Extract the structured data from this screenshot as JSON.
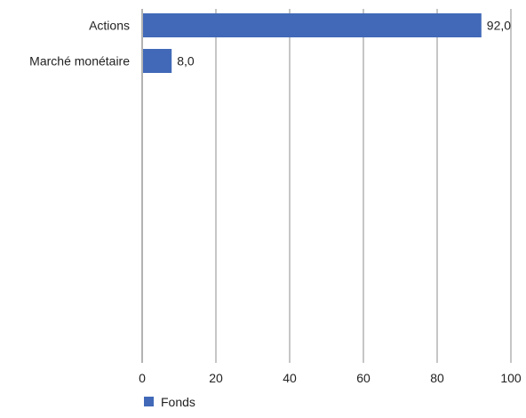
{
  "chart_data": {
    "type": "bar",
    "orientation": "horizontal",
    "categories": [
      "Actions",
      "Marché monétaire"
    ],
    "series": [
      {
        "name": "Fonds",
        "values": [
          92.0,
          8.0
        ],
        "value_labels": [
          "92,0",
          "8,0"
        ]
      }
    ],
    "xlim": [
      0,
      100
    ],
    "x_ticks": [
      "0",
      "20",
      "40",
      "60",
      "80",
      "100"
    ],
    "grid": "vertical",
    "legend": "bottom-left",
    "colors": {
      "bar": "#4169b8",
      "grid": "#b3b3b3",
      "axis": "#9a9a9a"
    }
  }
}
